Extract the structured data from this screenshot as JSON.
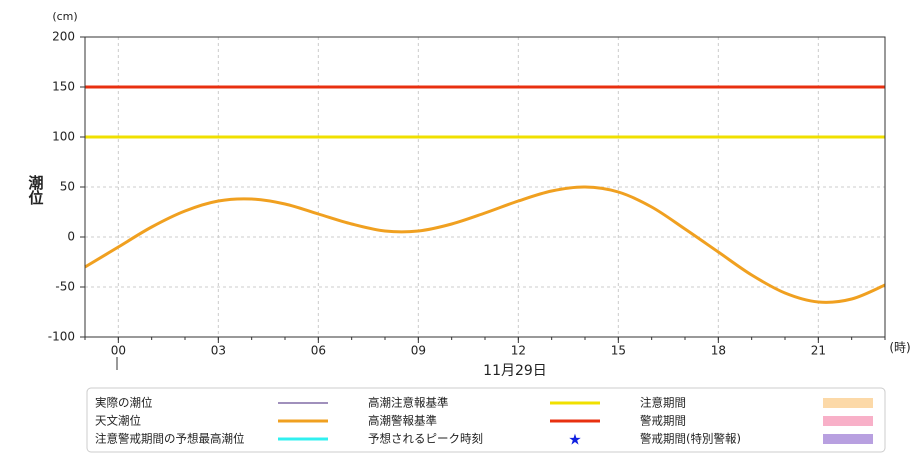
{
  "chart_data": {
    "type": "line",
    "y_unit": "(cm)",
    "x_unit": "(時)",
    "ylabel": "潮位",
    "date_label": "11月29日",
    "x": [
      -1,
      0,
      1,
      2,
      3,
      4,
      5,
      6,
      7,
      8,
      9,
      10,
      11,
      12,
      13,
      14,
      15,
      16,
      17,
      18,
      19,
      20,
      21,
      22,
      23
    ],
    "series": [
      {
        "name": "天文潮位",
        "color": "#f0a020",
        "values": [
          -30,
          -10,
          10,
          26,
          36,
          38,
          33,
          23,
          13,
          6,
          6,
          13,
          24,
          36,
          46,
          50,
          45,
          30,
          8,
          -15,
          -38,
          -56,
          -65,
          -62,
          -48
        ]
      }
    ],
    "reference_lines": [
      {
        "name": "高潮注意報基準",
        "value": 100,
        "color": "#f0e000"
      },
      {
        "name": "高潮警報基準",
        "value": 150,
        "color": "#e83010"
      }
    ],
    "xlim": [
      -1,
      23
    ],
    "xticks": [
      {
        "value": 0,
        "label": "00"
      },
      {
        "value": 3,
        "label": "03"
      },
      {
        "value": 6,
        "label": "06"
      },
      {
        "value": 9,
        "label": "09"
      },
      12,
      15,
      18,
      21
    ],
    "ylim": [
      -100,
      200
    ],
    "yticks": [
      -100,
      -50,
      0,
      50,
      100,
      150,
      200
    ],
    "grid": true,
    "legend": [
      {
        "name": "実際の潮位",
        "color": "#40207a",
        "symbol": "thin-line"
      },
      {
        "name": "天文潮位",
        "color": "#f0a020",
        "symbol": "line"
      },
      {
        "name": "注意警戒期間の予想最高潮位",
        "color": "#30f0f0",
        "symbol": "line"
      },
      {
        "name": "高潮注意報基準",
        "color": "#f0e000",
        "symbol": "line"
      },
      {
        "name": "高潮警報基準",
        "color": "#e83010",
        "symbol": "line"
      },
      {
        "name": "予想されるピーク時刻",
        "color": "#1020e0",
        "symbol": "star"
      },
      {
        "name": "注意期間",
        "color": "#fcd9a8",
        "symbol": "rect"
      },
      {
        "name": "警戒期間",
        "color": "#f8b0c8",
        "symbol": "rect"
      },
      {
        "name": "警戒期間(特別警報)",
        "color": "#b8a0e0",
        "symbol": "rect"
      }
    ]
  }
}
